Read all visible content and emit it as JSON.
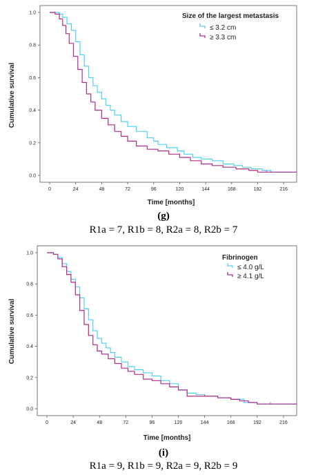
{
  "colors": {
    "group_low": "#4fd0f0",
    "group_high": "#b02a8a",
    "frame": "#555555"
  },
  "chart_data": [
    {
      "type": "line",
      "title": "",
      "xlabel": "Time [months]",
      "ylabel": "Cumulative survival",
      "xlim": [
        0,
        228
      ],
      "ylim": [
        0,
        1.0
      ],
      "xticks": [
        0,
        24,
        48,
        72,
        96,
        120,
        144,
        168,
        192,
        216
      ],
      "yticks": [
        0.0,
        0.2,
        0.4,
        0.6,
        0.8,
        1.0
      ],
      "grid": false,
      "legend": {
        "title": "Size of the largest metastasis",
        "placement": "top-right"
      },
      "series": [
        {
          "name": "≤ 3.2 cm",
          "color": "#4fd0f0",
          "x": [
            0,
            2,
            5,
            9,
            12,
            16,
            20,
            24,
            28,
            32,
            36,
            40,
            44,
            48,
            52,
            56,
            60,
            66,
            72,
            80,
            90,
            96,
            100,
            108,
            118,
            124,
            132,
            140,
            150,
            160,
            170,
            178,
            186,
            196,
            204,
            216,
            228
          ],
          "y": [
            1.0,
            1.0,
            1.0,
            0.99,
            0.97,
            0.93,
            0.89,
            0.82,
            0.74,
            0.67,
            0.6,
            0.55,
            0.51,
            0.47,
            0.43,
            0.4,
            0.37,
            0.33,
            0.3,
            0.27,
            0.23,
            0.21,
            0.19,
            0.17,
            0.15,
            0.13,
            0.11,
            0.1,
            0.09,
            0.07,
            0.06,
            0.05,
            0.04,
            0.03,
            0.02,
            0.02,
            0.02
          ]
        },
        {
          "name": "≥ 3.3 cm",
          "color": "#b02a8a",
          "x": [
            0,
            2,
            5,
            9,
            12,
            15,
            18,
            22,
            26,
            30,
            34,
            38,
            42,
            48,
            54,
            60,
            66,
            72,
            80,
            90,
            100,
            110,
            120,
            130,
            140,
            150,
            160,
            172,
            184,
            192,
            200,
            216,
            228
          ],
          "y": [
            1.0,
            1.0,
            0.99,
            0.96,
            0.92,
            0.87,
            0.81,
            0.73,
            0.65,
            0.57,
            0.5,
            0.45,
            0.4,
            0.35,
            0.31,
            0.27,
            0.24,
            0.21,
            0.18,
            0.16,
            0.15,
            0.13,
            0.11,
            0.09,
            0.07,
            0.06,
            0.05,
            0.04,
            0.03,
            0.02,
            0.02,
            0.02,
            0.02
          ]
        }
      ]
    },
    {
      "type": "line",
      "title": "",
      "xlabel": "Time [months]",
      "ylabel": "Cumulative survival",
      "xlim": [
        0,
        228
      ],
      "ylim": [
        0,
        1.0
      ],
      "xticks": [
        0,
        24,
        48,
        72,
        96,
        120,
        144,
        168,
        192,
        216
      ],
      "yticks": [
        0.0,
        0.2,
        0.4,
        0.6,
        0.8,
        1.0
      ],
      "grid": false,
      "legend": {
        "title": "Fibrinogen",
        "placement": "top-right"
      },
      "series": [
        {
          "name": "≤ 4.0 g/L",
          "color": "#4fd0f0",
          "x": [
            0,
            3,
            6,
            10,
            14,
            18,
            22,
            26,
            30,
            34,
            38,
            42,
            46,
            50,
            54,
            58,
            62,
            68,
            74,
            80,
            88,
            96,
            104,
            112,
            120,
            128,
            136,
            144,
            156,
            168,
            180,
            192,
            204,
            216,
            228
          ],
          "y": [
            1.0,
            1.0,
            0.99,
            0.97,
            0.93,
            0.88,
            0.83,
            0.78,
            0.71,
            0.64,
            0.57,
            0.5,
            0.45,
            0.42,
            0.39,
            0.36,
            0.33,
            0.3,
            0.27,
            0.25,
            0.23,
            0.21,
            0.18,
            0.16,
            0.12,
            0.1,
            0.09,
            0.08,
            0.07,
            0.06,
            0.04,
            0.03,
            0.03,
            0.03,
            0.03
          ]
        },
        {
          "name": "≥ 4.1 g/L",
          "color": "#b02a8a",
          "x": [
            0,
            3,
            6,
            10,
            14,
            18,
            22,
            26,
            30,
            34,
            38,
            42,
            46,
            50,
            56,
            62,
            68,
            74,
            80,
            88,
            96,
            104,
            112,
            120,
            128,
            136,
            144,
            156,
            168,
            176,
            184,
            192,
            204,
            216,
            228
          ],
          "y": [
            1.0,
            1.0,
            0.99,
            0.96,
            0.91,
            0.86,
            0.81,
            0.73,
            0.63,
            0.54,
            0.47,
            0.41,
            0.37,
            0.35,
            0.32,
            0.29,
            0.26,
            0.24,
            0.22,
            0.19,
            0.18,
            0.16,
            0.14,
            0.12,
            0.08,
            0.08,
            0.08,
            0.07,
            0.06,
            0.05,
            0.04,
            0.03,
            0.03,
            0.03,
            0.03
          ]
        }
      ]
    }
  ],
  "captions": [
    {
      "letter": "(g)",
      "text": "R1a = 7, R1b = 8, R2a = 8, R2b = 7"
    },
    {
      "letter": "(i)",
      "text": "R1a = 9, R1b = 9, R2a = 9, R2b = 9"
    }
  ]
}
